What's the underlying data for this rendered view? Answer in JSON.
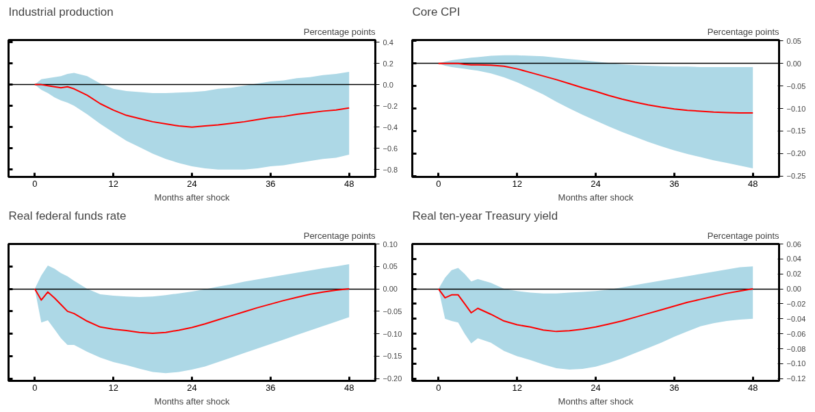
{
  "chart_data": [
    {
      "type": "line",
      "title": "Industrial production",
      "xlabel": "Months after shock",
      "ylabel": "Percentage points",
      "xlim": [
        -4,
        52
      ],
      "xticks": [
        0,
        12,
        24,
        36,
        48
      ],
      "ylim": [
        -0.87,
        0.42
      ],
      "yticks": [
        0.4,
        0.2,
        {
          "value": 0,
          "label": "0.0"
        },
        {
          "value": -0.2,
          "label": "−0.2"
        },
        {
          "value": -0.4,
          "label": "−0.4"
        },
        {
          "value": -0.6,
          "label": "−0.6"
        },
        {
          "value": -0.8,
          "label": "−0.8"
        }
      ],
      "grid": false,
      "x": [
        0,
        1,
        2,
        3,
        4,
        5,
        6,
        8,
        10,
        12,
        14,
        16,
        18,
        20,
        22,
        24,
        26,
        28,
        30,
        32,
        34,
        36,
        38,
        40,
        42,
        44,
        46,
        48
      ],
      "series": [
        {
          "color": "#ff0000",
          "values": [
            0,
            0,
            -0.01,
            -0.02,
            -0.03,
            -0.02,
            -0.04,
            -0.1,
            -0.18,
            -0.24,
            -0.29,
            -0.32,
            -0.35,
            -0.37,
            -0.39,
            -0.4,
            -0.39,
            -0.38,
            -0.365,
            -0.35,
            -0.33,
            -0.31,
            -0.3,
            -0.28,
            -0.265,
            -0.25,
            -0.24,
            -0.22
          ],
          "upper": [
            0,
            0.05,
            0.06,
            0.07,
            0.08,
            0.1,
            0.11,
            0.08,
            0.01,
            -0.04,
            -0.06,
            -0.07,
            -0.08,
            -0.08,
            -0.075,
            -0.07,
            -0.06,
            -0.04,
            -0.03,
            -0.01,
            0.01,
            0.03,
            0.04,
            0.06,
            0.07,
            0.09,
            0.1,
            0.12
          ],
          "lower": [
            0,
            -0.05,
            -0.08,
            -0.12,
            -0.15,
            -0.17,
            -0.2,
            -0.28,
            -0.37,
            -0.45,
            -0.53,
            -0.59,
            -0.65,
            -0.7,
            -0.74,
            -0.77,
            -0.79,
            -0.8,
            -0.8,
            -0.8,
            -0.79,
            -0.77,
            -0.76,
            -0.74,
            -0.72,
            -0.7,
            -0.69,
            -0.66
          ]
        }
      ],
      "ref_lines": [
        {
          "axis": "y",
          "value": 0,
          "color": "#000000"
        }
      ]
    },
    {
      "type": "line",
      "title": "Core CPI",
      "xlabel": "Months after shock",
      "ylabel": "Percentage points",
      "xlim": [
        -4,
        52
      ],
      "xticks": [
        0,
        12,
        24,
        36,
        48
      ],
      "ylim": [
        -0.252,
        0.052
      ],
      "yticks": [
        0.05,
        {
          "value": 0,
          "label": "0.00"
        },
        {
          "value": -0.05,
          "label": "−0.05"
        },
        {
          "value": -0.1,
          "label": "−0.10"
        },
        {
          "value": -0.15,
          "label": "−0.15"
        },
        {
          "value": -0.2,
          "label": "−0.20"
        },
        {
          "value": -0.25,
          "label": "−0.25"
        }
      ],
      "grid": false,
      "x": [
        0,
        1,
        2,
        3,
        4,
        5,
        6,
        8,
        10,
        12,
        14,
        16,
        18,
        20,
        22,
        24,
        26,
        28,
        30,
        32,
        34,
        36,
        38,
        40,
        42,
        44,
        46,
        48
      ],
      "series": [
        {
          "color": "#ff0000",
          "values": [
            0,
            0,
            0,
            0,
            -0.002,
            -0.003,
            -0.003,
            -0.004,
            -0.006,
            -0.012,
            -0.02,
            -0.028,
            -0.036,
            -0.045,
            -0.054,
            -0.062,
            -0.071,
            -0.079,
            -0.086,
            -0.092,
            -0.097,
            -0.101,
            -0.104,
            -0.106,
            -0.108,
            -0.109,
            -0.11,
            -0.11
          ],
          "upper": [
            0,
            0.004,
            0.007,
            0.009,
            0.011,
            0.013,
            0.014,
            0.017,
            0.018,
            0.018,
            0.017,
            0.016,
            0.013,
            0.01,
            0.007,
            0.004,
            0.001,
            -0.002,
            -0.004,
            -0.005,
            -0.006,
            -0.007,
            -0.007,
            -0.008,
            -0.008,
            -0.008,
            -0.008,
            -0.008
          ],
          "lower": [
            0,
            -0.005,
            -0.008,
            -0.01,
            -0.012,
            -0.014,
            -0.016,
            -0.022,
            -0.031,
            -0.042,
            -0.055,
            -0.069,
            -0.085,
            -0.1,
            -0.114,
            -0.127,
            -0.14,
            -0.152,
            -0.163,
            -0.174,
            -0.184,
            -0.193,
            -0.201,
            -0.208,
            -0.215,
            -0.221,
            -0.227,
            -0.233
          ]
        }
      ],
      "ref_lines": [
        {
          "axis": "y",
          "value": 0,
          "color": "#000000"
        }
      ]
    },
    {
      "type": "line",
      "title": "Real federal funds rate",
      "xlabel": "Months after shock",
      "ylabel": "Percentage points",
      "xlim": [
        -4,
        52
      ],
      "xticks": [
        0,
        12,
        24,
        36,
        48
      ],
      "ylim": [
        -0.205,
        0.1
      ],
      "yticks": [
        {
          "value": 0.1,
          "label": "0.10"
        },
        0.05,
        {
          "value": 0,
          "label": "0.00"
        },
        {
          "value": -0.05,
          "label": "−0.05"
        },
        {
          "value": -0.1,
          "label": "−0.10"
        },
        {
          "value": -0.15,
          "label": "−0.15"
        },
        {
          "value": -0.2,
          "label": "−0.20"
        }
      ],
      "grid": false,
      "x": [
        0,
        1,
        2,
        3,
        4,
        5,
        6,
        8,
        10,
        12,
        14,
        16,
        18,
        20,
        22,
        24,
        26,
        28,
        30,
        32,
        34,
        36,
        38,
        40,
        42,
        44,
        46,
        48
      ],
      "series": [
        {
          "color": "#ff0000",
          "values": [
            0,
            -0.025,
            -0.007,
            -0.02,
            -0.035,
            -0.05,
            -0.055,
            -0.072,
            -0.085,
            -0.09,
            -0.093,
            -0.097,
            -0.099,
            -0.097,
            -0.092,
            -0.086,
            -0.078,
            -0.069,
            -0.06,
            -0.051,
            -0.042,
            -0.034,
            -0.026,
            -0.019,
            -0.012,
            -0.007,
            -0.003,
            0
          ],
          "upper": [
            0,
            0.03,
            0.052,
            0.045,
            0.035,
            0.028,
            0.018,
            0.0,
            -0.012,
            -0.015,
            -0.017,
            -0.018,
            -0.017,
            -0.014,
            -0.01,
            -0.006,
            -0.001,
            0.005,
            0.01,
            0.016,
            0.021,
            0.026,
            0.031,
            0.036,
            0.041,
            0.046,
            0.05,
            0.055
          ],
          "lower": [
            0,
            -0.075,
            -0.07,
            -0.09,
            -0.11,
            -0.125,
            -0.125,
            -0.14,
            -0.153,
            -0.163,
            -0.17,
            -0.178,
            -0.185,
            -0.188,
            -0.185,
            -0.18,
            -0.173,
            -0.163,
            -0.153,
            -0.143,
            -0.133,
            -0.123,
            -0.113,
            -0.103,
            -0.093,
            -0.083,
            -0.073,
            -0.063
          ]
        }
      ],
      "ref_lines": [
        {
          "axis": "y",
          "value": 0,
          "color": "#000000"
        }
      ]
    },
    {
      "type": "line",
      "title": "Real ten-year Treasury yield",
      "xlabel": "Months after shock",
      "ylabel": "Percentage points",
      "xlim": [
        -4,
        52
      ],
      "xticks": [
        0,
        12,
        24,
        36,
        48
      ],
      "ylim": [
        -0.123,
        0.06
      ],
      "yticks": [
        0.06,
        0.04,
        0.02,
        {
          "value": 0,
          "label": "0.00"
        },
        {
          "value": -0.02,
          "label": "−0.02"
        },
        {
          "value": -0.04,
          "label": "−0.04"
        },
        {
          "value": -0.06,
          "label": "−0.06"
        },
        {
          "value": -0.08,
          "label": "−0.08"
        },
        {
          "value": -0.1,
          "label": "−0.10"
        },
        {
          "value": -0.12,
          "label": "−0.12"
        }
      ],
      "grid": false,
      "x": [
        0,
        1,
        2,
        3,
        4,
        5,
        6,
        8,
        10,
        12,
        14,
        16,
        18,
        20,
        22,
        24,
        26,
        28,
        30,
        32,
        34,
        36,
        38,
        40,
        42,
        44,
        46,
        48
      ],
      "series": [
        {
          "color": "#ff0000",
          "values": [
            0,
            -0.012,
            -0.008,
            -0.008,
            -0.02,
            -0.032,
            -0.026,
            -0.034,
            -0.043,
            -0.048,
            -0.051,
            -0.055,
            -0.057,
            -0.056,
            -0.054,
            -0.051,
            -0.047,
            -0.043,
            -0.038,
            -0.033,
            -0.028,
            -0.023,
            -0.018,
            -0.014,
            -0.01,
            -0.006,
            -0.003,
            0
          ],
          "upper": [
            0,
            0.015,
            0.025,
            0.028,
            0.02,
            0.01,
            0.013,
            0.008,
            0.0,
            -0.003,
            -0.005,
            -0.006,
            -0.006,
            -0.005,
            -0.004,
            -0.003,
            -0.001,
            0.002,
            0.005,
            0.008,
            0.011,
            0.014,
            0.017,
            0.02,
            0.023,
            0.026,
            0.029,
            0.03
          ],
          "lower": [
            0,
            -0.04,
            -0.043,
            -0.045,
            -0.06,
            -0.073,
            -0.066,
            -0.072,
            -0.083,
            -0.09,
            -0.095,
            -0.101,
            -0.106,
            -0.108,
            -0.107,
            -0.104,
            -0.099,
            -0.093,
            -0.086,
            -0.079,
            -0.072,
            -0.064,
            -0.057,
            -0.05,
            -0.046,
            -0.043,
            -0.041,
            -0.04
          ]
        }
      ],
      "ref_lines": [
        {
          "axis": "y",
          "value": 0,
          "color": "#000000"
        }
      ]
    }
  ]
}
